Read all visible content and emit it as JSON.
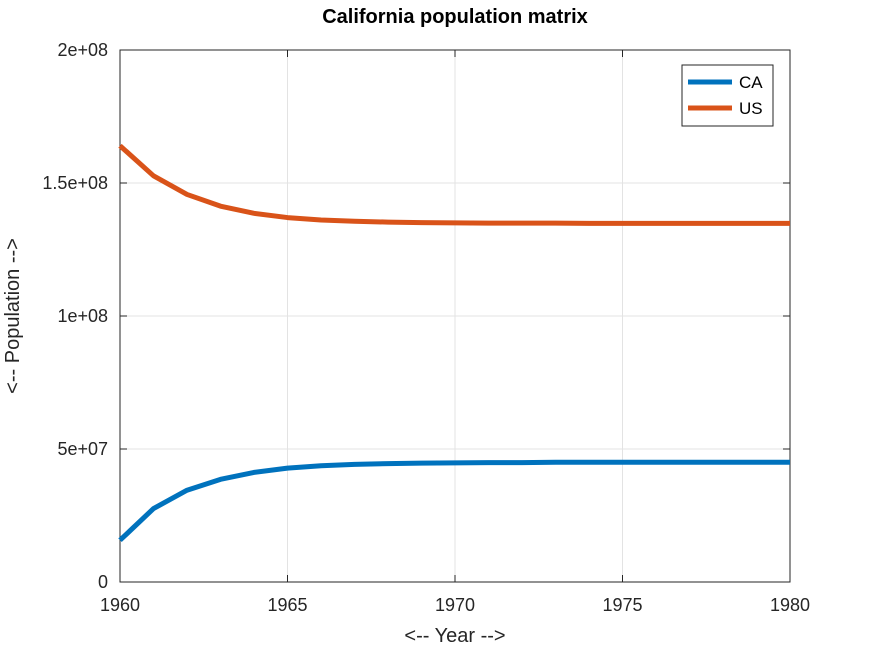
{
  "chart_data": {
    "type": "line",
    "title": "California population matrix",
    "xlabel": "<-- Year -->",
    "ylabel": "<-- Population -->",
    "xlim": [
      1960,
      1980
    ],
    "ylim": [
      0,
      200000000
    ],
    "xticks": [
      1960,
      1965,
      1970,
      1975,
      1980
    ],
    "xtick_labels": [
      "1960",
      "1965",
      "1970",
      "1975",
      "1980"
    ],
    "yticks": [
      0,
      50000000,
      100000000,
      150000000,
      200000000
    ],
    "ytick_labels": [
      "0",
      "5e+07",
      "1e+08",
      "1.5e+08",
      "2e+08"
    ],
    "grid": true,
    "legend_position": "top-right",
    "x": [
      1960,
      1961,
      1962,
      1963,
      1964,
      1965,
      1966,
      1967,
      1968,
      1969,
      1970,
      1971,
      1972,
      1973,
      1974,
      1975,
      1976,
      1977,
      1978,
      1979,
      1980
    ],
    "series": [
      {
        "name": "CA",
        "color": "#0072BD",
        "values": [
          15700000,
          27600000,
          34500000,
          38600000,
          41200000,
          42800000,
          43700000,
          44200000,
          44500000,
          44700000,
          44800000,
          44900000,
          44900000,
          45000000,
          45000000,
          45000000,
          45000000,
          45000000,
          45000000,
          45000000,
          45000000
        ]
      },
      {
        "name": "US",
        "color": "#D95319",
        "values": [
          164000000,
          152700000,
          145700000,
          141300000,
          138600000,
          137000000,
          136100000,
          135600000,
          135300000,
          135100000,
          135000000,
          134900000,
          134900000,
          134900000,
          134800000,
          134800000,
          134800000,
          134800000,
          134800000,
          134800000,
          134800000
        ]
      }
    ]
  }
}
